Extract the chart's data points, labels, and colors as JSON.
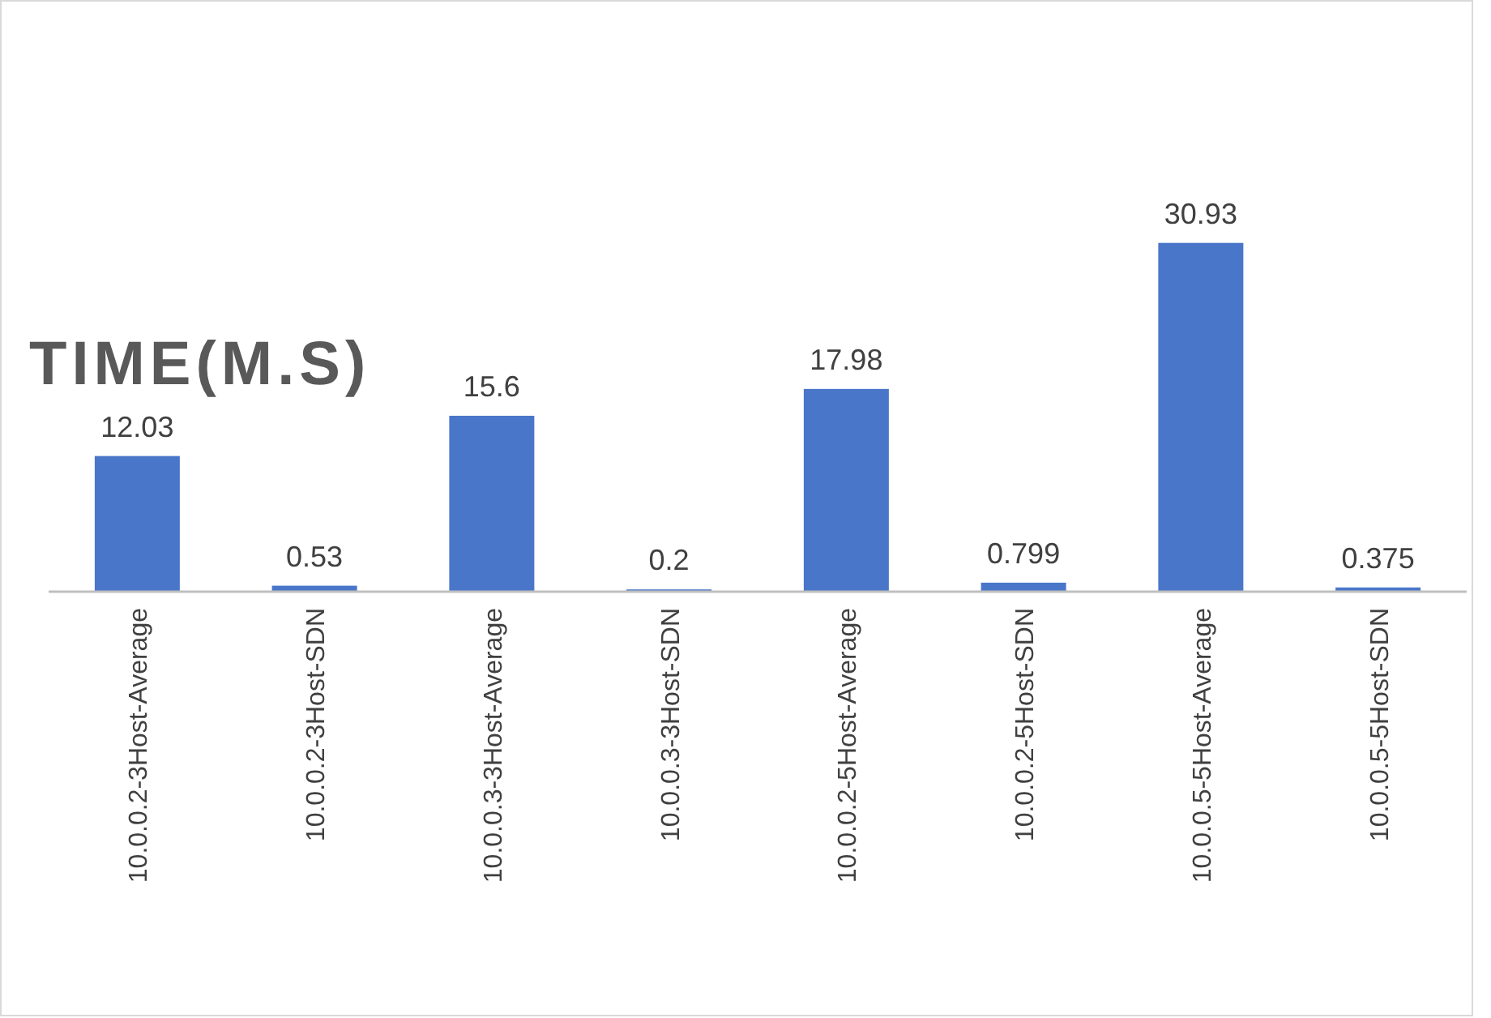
{
  "chart_data": {
    "type": "bar",
    "title": "TIME(M.S)",
    "categories": [
      "10.0.0.2-3Host-Average",
      "10.0.0.2-3Host-SDN",
      "10.0.0.3-3Host-Average",
      "10.0.0.3-3Host-SDN",
      "10.0.0.2-5Host-Average",
      "10.0.0.2-5Host-SDN",
      "10.0.0.5-5Host-Average",
      "10.0.0.5-5Host-SDN"
    ],
    "values": [
      12.03,
      0.53,
      15.6,
      0.2,
      17.98,
      0.799,
      30.93,
      0.375
    ],
    "color": "#4a76c9",
    "data_labels": true
  }
}
